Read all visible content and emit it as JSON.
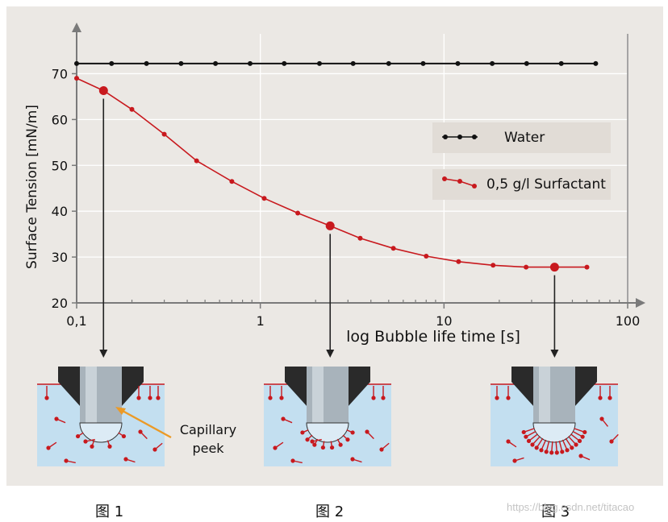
{
  "chart_data": {
    "type": "line",
    "xlabel": "log Bubble life time [s]",
    "ylabel": "Surface Tension [mN/m]",
    "xscale": "log",
    "xlim": [
      0.1,
      100
    ],
    "ylim": [
      20,
      75
    ],
    "x_ticks": [
      "0,1",
      "1",
      "10",
      "100"
    ],
    "y_ticks": [
      "20",
      "30",
      "40",
      "50",
      "60",
      "70"
    ],
    "grid": true,
    "legend_position": "right",
    "series": [
      {
        "name": "Water",
        "color": "#111111",
        "x": [
          0.1,
          0.155,
          0.24,
          0.37,
          0.57,
          0.88,
          1.35,
          2.1,
          3.2,
          5.0,
          7.7,
          11.9,
          18.3,
          28.2,
          43.5,
          67
        ],
        "y": [
          72.2,
          72.2,
          72.2,
          72.2,
          72.2,
          72.2,
          72.2,
          72.2,
          72.2,
          72.2,
          72.2,
          72.2,
          72.2,
          72.2,
          72.2,
          72.2
        ]
      },
      {
        "name": "0,5 g/l Surfactant",
        "color": "#c8191e",
        "x": [
          0.1,
          0.14,
          0.2,
          0.3,
          0.45,
          0.7,
          1.05,
          1.6,
          2.4,
          3.5,
          5.3,
          8.0,
          12,
          18.5,
          28,
          40,
          60
        ],
        "y": [
          69,
          66.3,
          62.2,
          56.8,
          51,
          46.5,
          42.8,
          39.6,
          36.8,
          34.1,
          31.9,
          30.2,
          29,
          28.2,
          27.8,
          27.8,
          27.8
        ],
        "highlighted_x": [
          0.14,
          2.4,
          40
        ]
      }
    ]
  },
  "diagrams": {
    "capillary_label_line1": "Capillary",
    "capillary_label_line2": "peek"
  },
  "captions": [
    "图 1",
    "图 2",
    "图 3"
  ],
  "watermark": "https://blog.csdn.net/titacao",
  "colors": {
    "panel_bg": "#ebe8e4",
    "liquid": "#c3dff0",
    "water_line": "#111111",
    "surfactant": "#c8191e",
    "label_arrow": "#eb9a26",
    "legend_bg": "#e1dcd6"
  }
}
